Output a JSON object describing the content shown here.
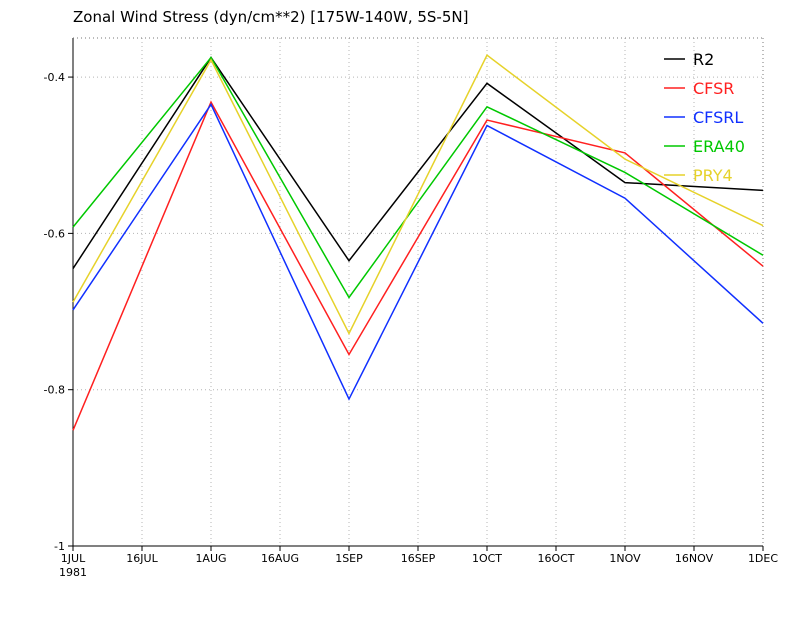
{
  "chart_data": {
    "type": "line",
    "title": "Zonal Wind Stress (dyn/cm**2) [175W-140W, 5S-5N]",
    "xlabel": "",
    "ylabel": "",
    "x_ticks": [
      "1JUL",
      "16JUL",
      "1AUG",
      "16AUG",
      "1SEP",
      "16SEP",
      "1OCT",
      "16OCT",
      "1NOV",
      "16NOV",
      "1DEC"
    ],
    "x_tick_sublabel": "1981",
    "y_ticks": [
      "-0.4",
      "-0.6",
      "-0.8",
      "-1"
    ],
    "y_tick_values": [
      -0.4,
      -0.6,
      -0.8,
      -1
    ],
    "ylim": [
      -1,
      -0.35
    ],
    "grid": true,
    "legend_position": "top-right",
    "x": [
      "1981-07-01",
      "1981-08-01",
      "1981-09-01",
      "1981-10-01",
      "1981-11-01",
      "1981-12-01"
    ],
    "series": [
      {
        "name": "R2",
        "color": "#000000",
        "values": [
          -0.645,
          -0.375,
          -0.635,
          -0.408,
          -0.535,
          -0.545
        ]
      },
      {
        "name": "CFSR",
        "color": "#ff2020",
        "values": [
          -0.852,
          -0.432,
          -0.755,
          -0.455,
          -0.497,
          -0.642
        ]
      },
      {
        "name": "CFSRL",
        "color": "#1030ff",
        "values": [
          -0.698,
          -0.435,
          -0.812,
          -0.462,
          -0.555,
          -0.715
        ]
      },
      {
        "name": "ERA40",
        "color": "#00c800",
        "values": [
          -0.592,
          -0.375,
          -0.682,
          -0.438,
          -0.522,
          -0.628
        ]
      },
      {
        "name": "PRY4",
        "color": "#e6d22a",
        "values": [
          -0.688,
          -0.378,
          -0.728,
          -0.372,
          -0.505,
          -0.59
        ]
      }
    ]
  }
}
